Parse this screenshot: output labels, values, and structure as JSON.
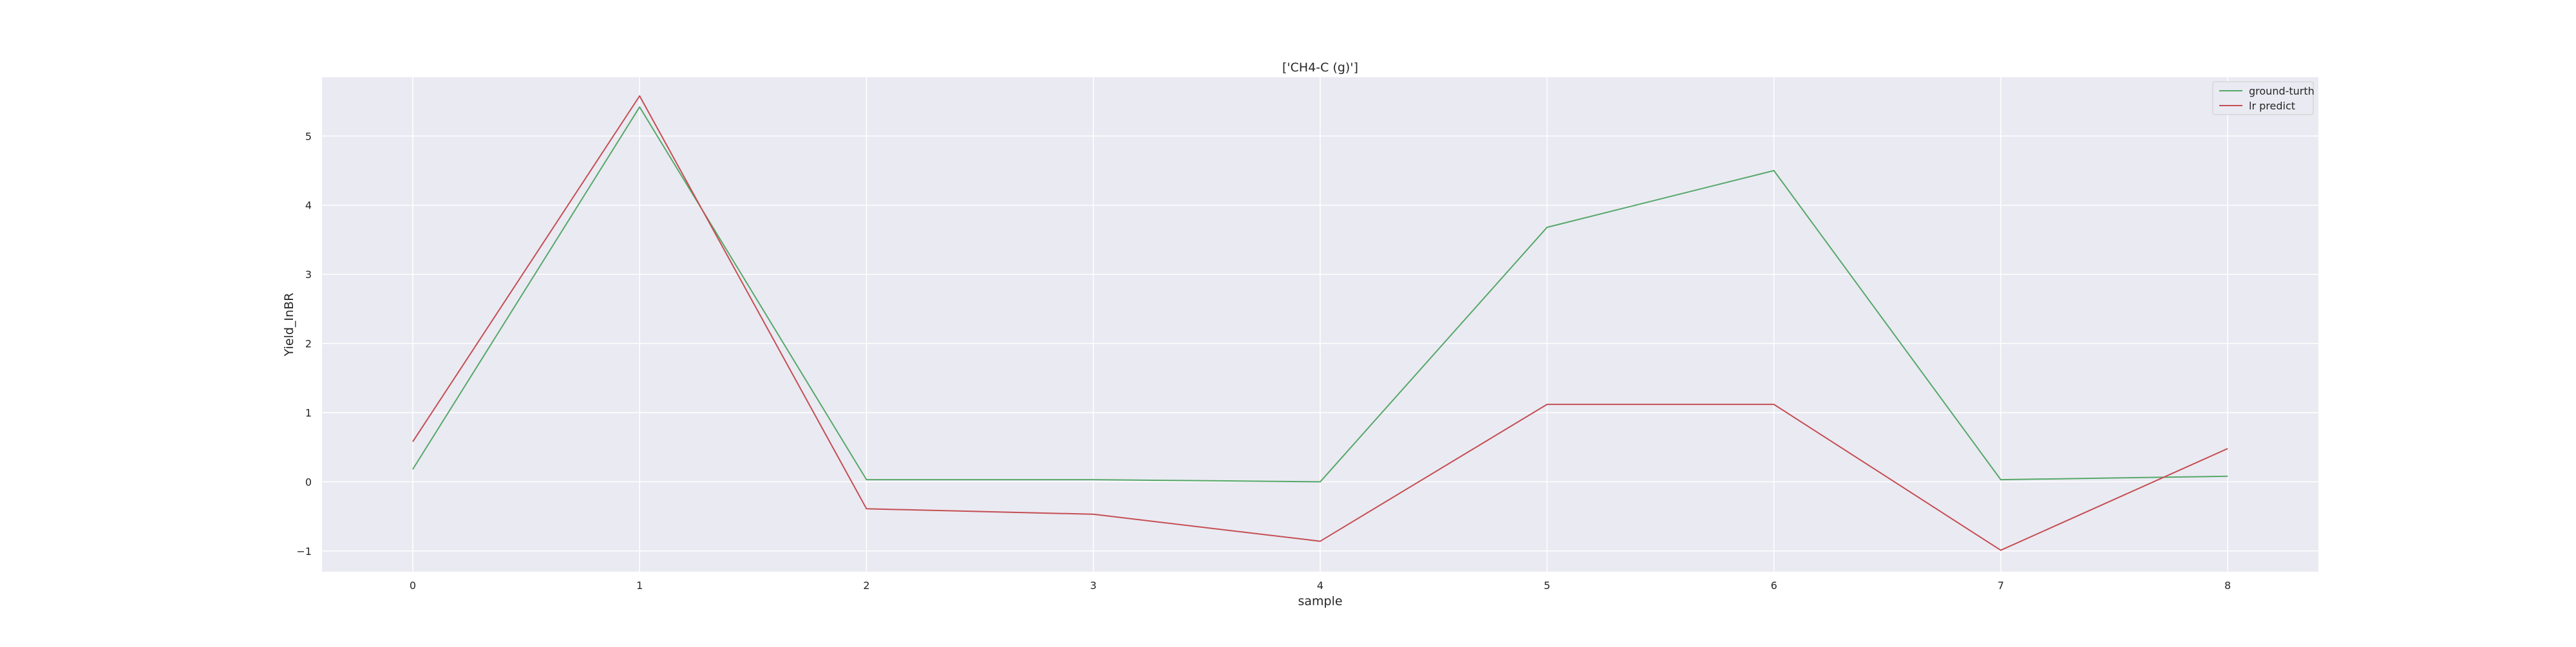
{
  "chart_data": {
    "type": "line",
    "title": "['CH4-C (g)']",
    "xlabel": "sample",
    "ylabel": "Yield_InBR",
    "x": [
      0,
      1,
      2,
      3,
      4,
      5,
      6,
      7,
      8
    ],
    "xlim": [
      -0.4,
      8.4
    ],
    "ylim": [
      -1.3,
      5.85
    ],
    "xticks": [
      0,
      1,
      2,
      3,
      4,
      5,
      6,
      7,
      8
    ],
    "yticks": [
      -1,
      0,
      1,
      2,
      3,
      4,
      5
    ],
    "xtick_labels": [
      "0",
      "1",
      "2",
      "3",
      "4",
      "5",
      "6",
      "7",
      "8"
    ],
    "ytick_labels": [
      "−1",
      "0",
      "1",
      "2",
      "3",
      "4",
      "5"
    ],
    "grid": true,
    "legend_position": "top-right",
    "series": [
      {
        "name": "ground-turth",
        "color": "#55a868",
        "values": [
          0.18,
          5.42,
          0.03,
          0.03,
          0.0,
          3.68,
          4.5,
          0.03,
          0.08
        ]
      },
      {
        "name": "lr predict",
        "color": "#c44e52",
        "values": [
          0.58,
          5.58,
          -0.39,
          -0.47,
          -0.86,
          1.12,
          1.12,
          -0.99,
          0.48
        ]
      }
    ]
  }
}
